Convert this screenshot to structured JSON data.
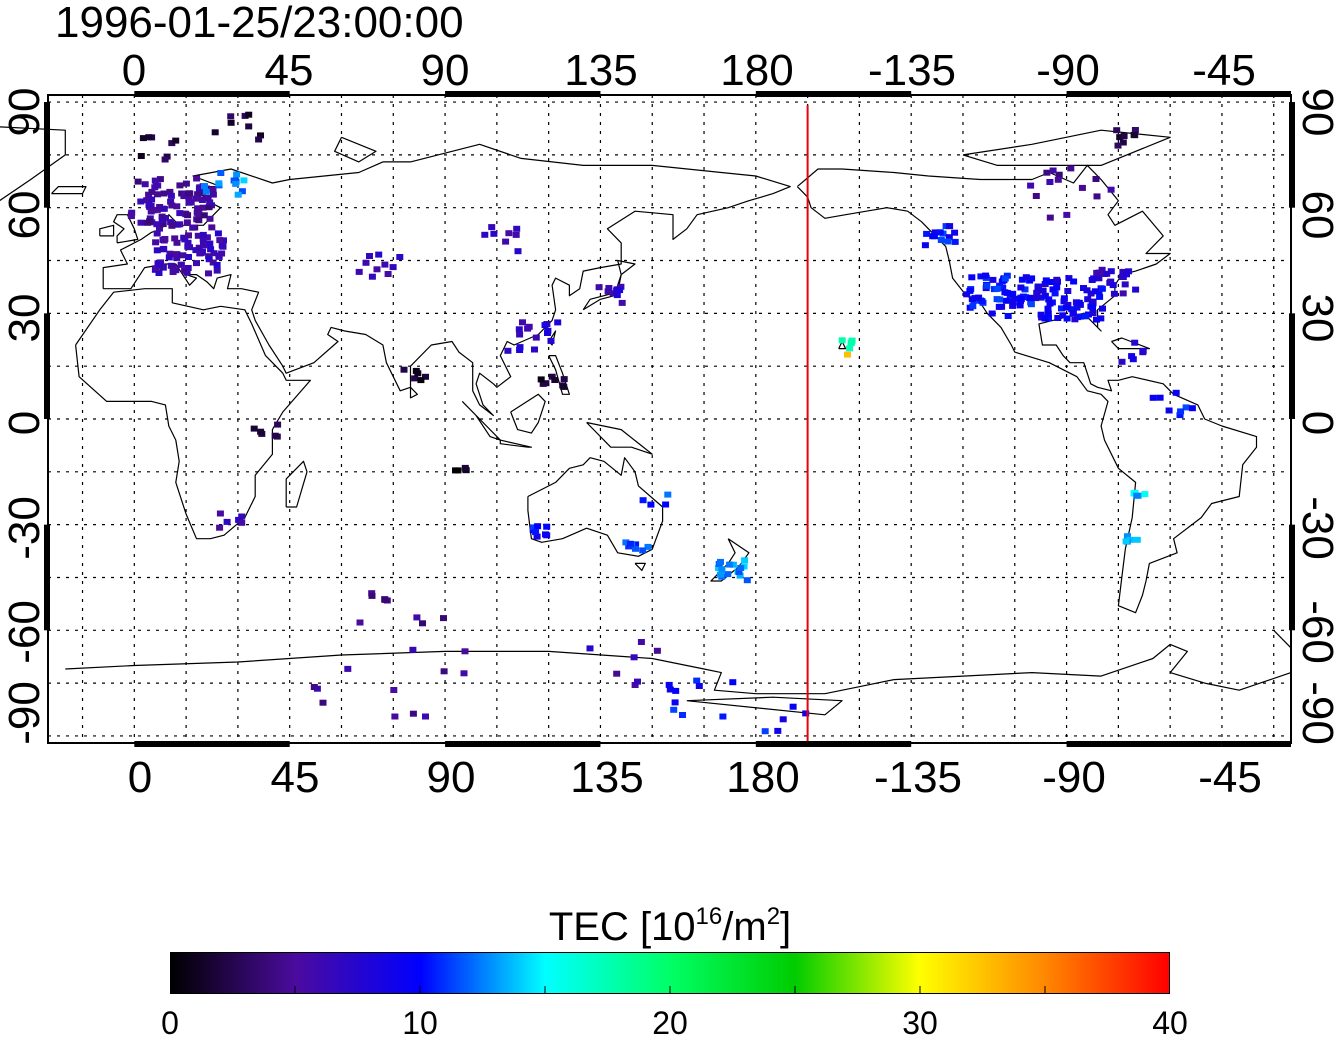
{
  "title": "1996-01-25/23:00:00",
  "lon_labels_top": [
    "0",
    "45",
    "90",
    "135",
    "180",
    "-135",
    "-90",
    "-45"
  ],
  "lon_labels_bottom": [
    "0",
    "45",
    "90",
    "135",
    "180",
    "-135",
    "-90",
    "-45"
  ],
  "lat_labels_left": [
    "90",
    "60",
    "30",
    "0",
    "-30",
    "-60",
    "-90"
  ],
  "lat_labels_right": [
    "90",
    "60",
    "30",
    "0",
    "-30",
    "-60",
    "-90"
  ],
  "map": {
    "lon_range": [
      -25,
      335
    ],
    "lat_range": [
      -92,
      92
    ],
    "terminator_lon": 195,
    "terminator_color": "#e8000b"
  },
  "colorbar": {
    "title_prefix": "TEC  [10",
    "title_sup1": "16",
    "title_mid": "/m",
    "title_sup2": "2",
    "title_suffix": "]",
    "ticks": [
      "0",
      "10",
      "20",
      "30",
      "40"
    ],
    "range": [
      0,
      40
    ]
  },
  "tec_clusters": [
    {
      "lon": 10,
      "lat": 62,
      "spread": 12,
      "n": 90,
      "tec": 5
    },
    {
      "lon": 15,
      "lat": 48,
      "spread": 10,
      "n": 70,
      "tec": 6
    },
    {
      "lon": 25,
      "lat": 68,
      "spread": 6,
      "n": 12,
      "tec": 13
    },
    {
      "lon": 30,
      "lat": 84,
      "spread": 8,
      "n": 8,
      "tec": 2
    },
    {
      "lon": 5,
      "lat": 78,
      "spread": 6,
      "n": 8,
      "tec": 2
    },
    {
      "lon": 70,
      "lat": 44,
      "spread": 6,
      "n": 10,
      "tec": 6
    },
    {
      "lon": 105,
      "lat": 52,
      "spread": 6,
      "n": 8,
      "tec": 6
    },
    {
      "lon": 80,
      "lat": 14,
      "spread": 4,
      "n": 6,
      "tec": 1
    },
    {
      "lon": 37,
      "lat": -2,
      "spread": 4,
      "n": 6,
      "tec": 2
    },
    {
      "lon": 27,
      "lat": -28,
      "spread": 4,
      "n": 6,
      "tec": 6
    },
    {
      "lon": 115,
      "lat": 25,
      "spread": 8,
      "n": 16,
      "tec": 7
    },
    {
      "lon": 120,
      "lat": 12,
      "spread": 4,
      "n": 8,
      "tec": 2
    },
    {
      "lon": 138,
      "lat": 36,
      "spread": 5,
      "n": 10,
      "tec": 7
    },
    {
      "lon": 95,
      "lat": -12,
      "spread": 3,
      "n": 4,
      "tec": 1
    },
    {
      "lon": 117,
      "lat": -31,
      "spread": 3,
      "n": 8,
      "tec": 10
    },
    {
      "lon": 145,
      "lat": -35,
      "spread": 4,
      "n": 8,
      "tec": 11
    },
    {
      "lon": 150,
      "lat": -22,
      "spread": 4,
      "n": 4,
      "tec": 11
    },
    {
      "lon": 173,
      "lat": -42,
      "spread": 5,
      "n": 16,
      "tec": 13
    },
    {
      "lon": 205,
      "lat": 22,
      "spread": 2,
      "n": 5,
      "tec": 17
    },
    {
      "lon": 206,
      "lat": 19,
      "spread": 1,
      "n": 1,
      "tec": 34
    },
    {
      "lon": 232,
      "lat": 53,
      "spread": 5,
      "n": 14,
      "tec": 10
    },
    {
      "lon": 250,
      "lat": 36,
      "spread": 10,
      "n": 60,
      "tec": 10
    },
    {
      "lon": 270,
      "lat": 35,
      "spread": 10,
      "n": 70,
      "tec": 9
    },
    {
      "lon": 283,
      "lat": 40,
      "spread": 6,
      "n": 20,
      "tec": 7
    },
    {
      "lon": 270,
      "lat": 65,
      "spread": 12,
      "n": 14,
      "tec": 5
    },
    {
      "lon": 285,
      "lat": 80,
      "spread": 6,
      "n": 8,
      "tec": 2
    },
    {
      "lon": 290,
      "lat": 20,
      "spread": 5,
      "n": 6,
      "tec": 8
    },
    {
      "lon": 300,
      "lat": 5,
      "spread": 6,
      "n": 8,
      "tec": 10
    },
    {
      "lon": 290,
      "lat": -20,
      "spread": 2,
      "n": 5,
      "tec": 14
    },
    {
      "lon": 288,
      "lat": -33,
      "spread": 2,
      "n": 5,
      "tec": 13
    },
    {
      "lon": 70,
      "lat": -50,
      "spread": 3,
      "n": 5,
      "tec": 5
    },
    {
      "lon": 70,
      "lat": -69,
      "spread": 25,
      "n": 16,
      "tec": 5
    },
    {
      "lon": 140,
      "lat": -69,
      "spread": 12,
      "n": 7,
      "tec": 6
    },
    {
      "lon": 163,
      "lat": -79,
      "spread": 10,
      "n": 10,
      "tec": 10
    },
    {
      "lon": 188,
      "lat": -83,
      "spread": 8,
      "n": 5,
      "tec": 10
    }
  ]
}
